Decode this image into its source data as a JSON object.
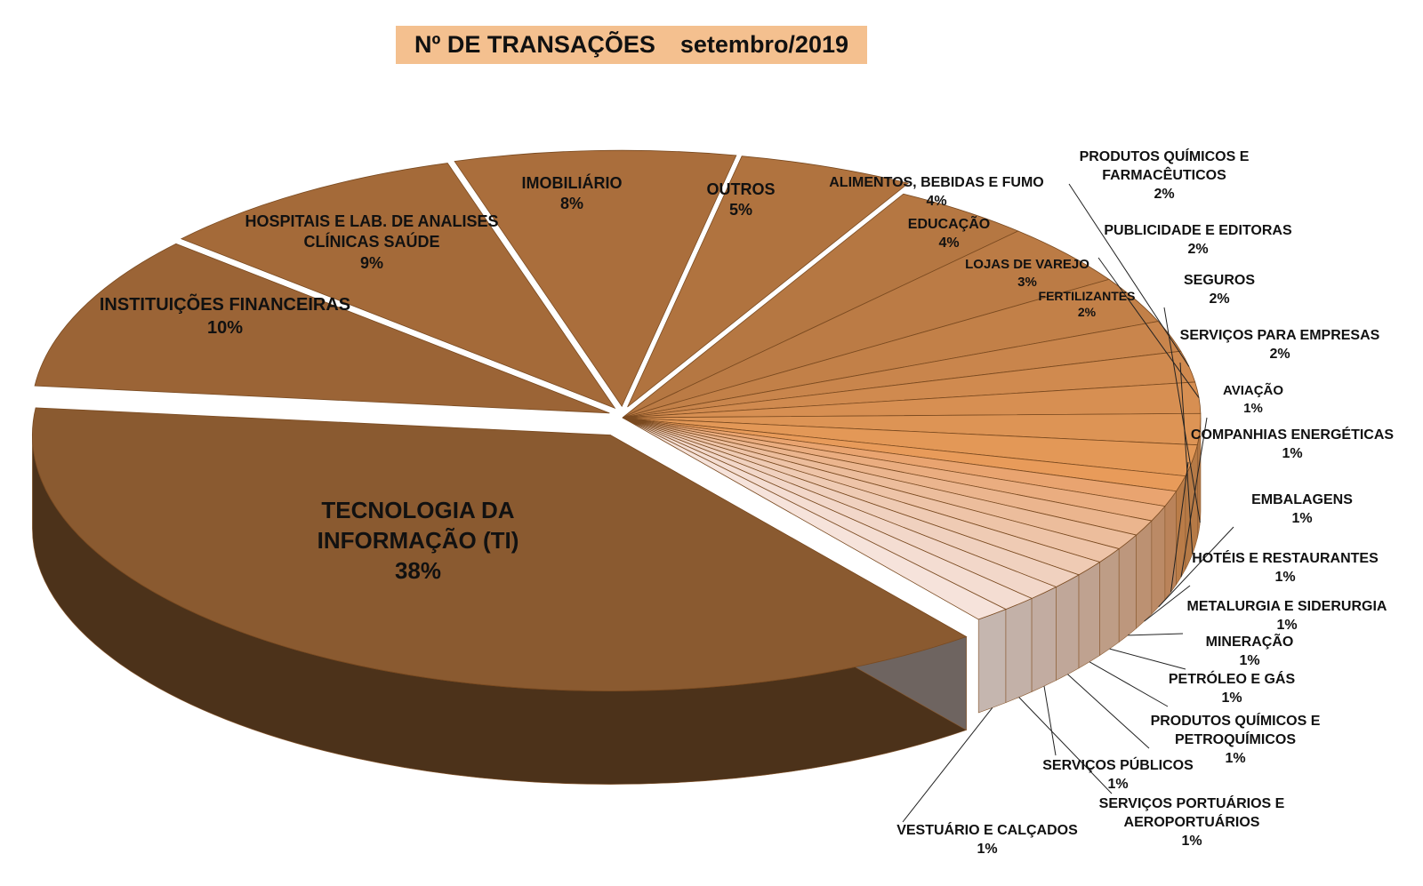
{
  "chart_data": {
    "type": "pie3d",
    "title": "Nº DE TRANSAÇÕES",
    "subtitle": "setembro/2019",
    "categories": [
      "TECNOLOGIA DA INFORMAÇÃO (TI)",
      "INSTITUIÇÕES FINANCEIRAS",
      "HOSPITAIS E LAB. DE ANALISES CLÍNICAS SAÚDE",
      "IMOBILIÁRIO",
      "OUTROS",
      "ALIMENTOS, BEBIDAS E FUMO",
      "EDUCAÇÃO",
      "LOJAS DE VAREJO",
      "FERTILIZANTES",
      "PRODUTOS QUÍMICOS E FARMACÊUTICOS",
      "PUBLICIDADE E EDITORAS",
      "SEGUROS",
      "SERVIÇOS PARA EMPRESAS",
      "AVIAÇÃO",
      "COMPANHIAS ENERGÉTICAS",
      "EMBALAGENS",
      "HOTÉIS E RESTAURANTES",
      "METALURGIA E SIDERURGIA",
      "MINERAÇÃO",
      "PETRÓLEO E GÁS",
      "PRODUTOS QUÍMICOS E PETROQUÍMICOS",
      "SERVIÇOS PÚBLICOS",
      "SERVIÇOS PORTUÁRIOS E AEROPORTUÁRIOS",
      "VESTUÁRIO E CALÇADOS"
    ],
    "values": [
      38,
      10,
      9,
      8,
      5,
      4,
      4,
      3,
      2,
      2,
      2,
      2,
      2,
      1,
      1,
      1,
      1,
      1,
      1,
      1,
      1,
      1,
      1,
      1
    ],
    "value_labels": [
      "38%",
      "10%",
      "9%",
      "8%",
      "5%",
      "4%",
      "4%",
      "3%",
      "2%",
      "2%",
      "2%",
      "2%",
      "2%",
      "1%",
      "1%",
      "1%",
      "1%",
      "1%",
      "1%",
      "1%",
      "1%",
      "1%",
      "1%",
      "1%"
    ],
    "colors": [
      "#8a5a30",
      "#9b6436",
      "#a46a39",
      "#aa6e3c",
      "#b0733f",
      "#b57742",
      "#bb7b45",
      "#c28048",
      "#c9854c",
      "#d08a4f",
      "#d78f52",
      "#dd9455",
      "#e39857",
      "#e89b5a",
      "#e9a470",
      "#eaad80",
      "#ebb58e",
      "#ecbd9c",
      "#eec4a8",
      "#efcbb4",
      "#f0d1bf",
      "#f2d7c9",
      "#f4ddd2",
      "#f6e3db"
    ]
  }
}
